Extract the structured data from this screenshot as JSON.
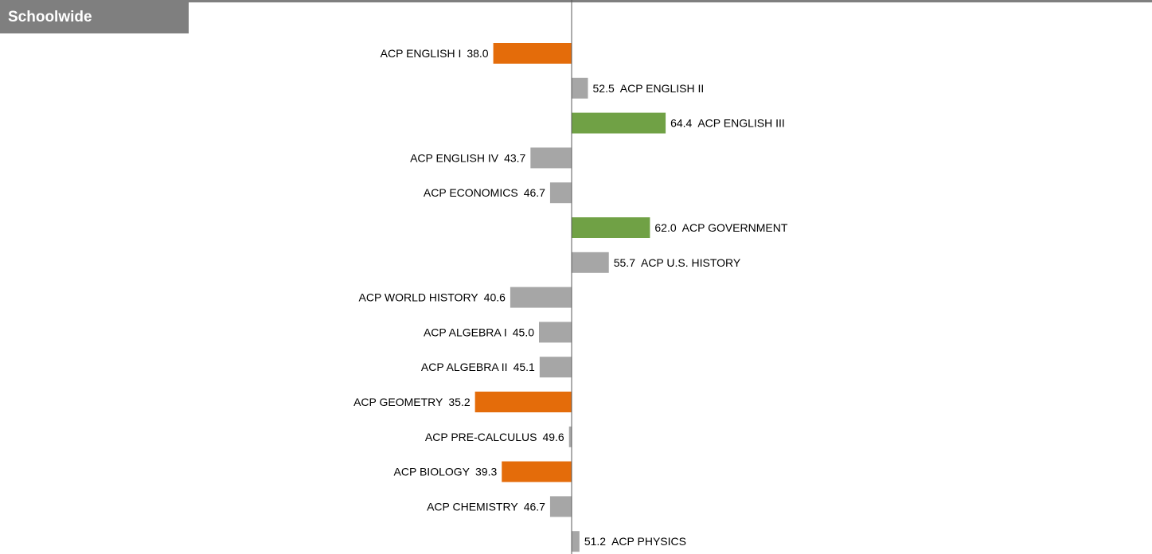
{
  "chart_data": {
    "type": "diverging-bar",
    "title": "Schoolwide",
    "categories": [
      "ACP ENGLISH I",
      "ACP ENGLISH II",
      "ACP ENGLISH III",
      "ACP ENGLISH IV",
      "ACP ECONOMICS",
      "ACP GOVERNMENT",
      "ACP U.S. HISTORY",
      "ACP WORLD HISTORY",
      "ACP ALGEBRA I",
      "ACP ALGEBRA II",
      "ACP GEOMETRY",
      "ACP PRE-CALCULUS",
      "ACP BIOLOGY",
      "ACP CHEMISTRY",
      "ACP PHYSICS"
    ],
    "values": [
      38.0,
      52.5,
      64.4,
      43.7,
      46.7,
      62.0,
      55.7,
      40.6,
      45.0,
      45.1,
      35.2,
      49.6,
      39.3,
      46.7,
      51.2
    ],
    "value_labels": [
      "38.0",
      "52.5",
      "64.4",
      "43.7",
      "46.7",
      "62.0",
      "55.7",
      "40.6",
      "45.0",
      "45.1",
      "35.2",
      "49.6",
      "39.3",
      "46.7",
      "51.2"
    ],
    "colors": [
      "#e46c0a",
      "#a6a6a6",
      "#70a145",
      "#a6a6a6",
      "#a6a6a6",
      "#70a145",
      "#a6a6a6",
      "#a6a6a6",
      "#a6a6a6",
      "#a6a6a6",
      "#e46c0a",
      "#a6a6a6",
      "#e46c0a",
      "#a6a6a6",
      "#a6a6a6"
    ],
    "baseline": 50,
    "xlim": [
      0,
      100
    ]
  }
}
